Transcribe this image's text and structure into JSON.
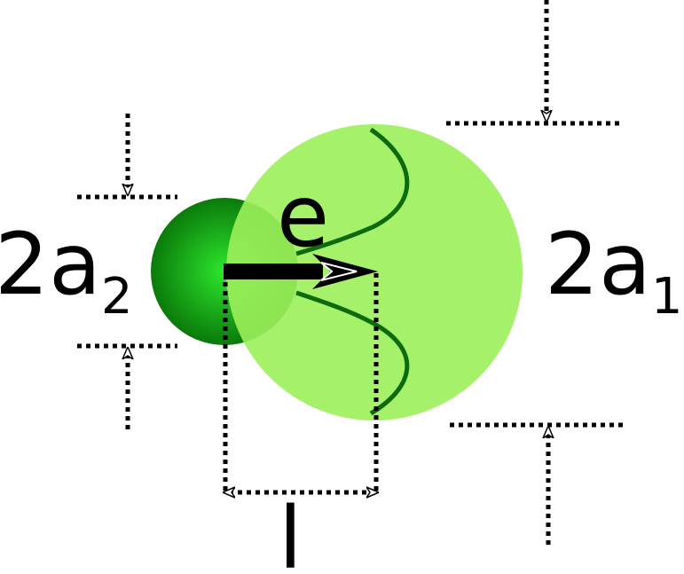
{
  "labels": {
    "left_diameter_main": "2a",
    "left_diameter_sub": "2",
    "right_diameter_main": "2a",
    "right_diameter_sub": "1",
    "director": "e",
    "length": "l"
  },
  "colors": {
    "large_sphere": "#9cf05a",
    "small_sphere_center": "#2ee62e",
    "small_sphere_edge": "#0a7a0a",
    "wave_curve": "#0d6b0d",
    "ink": "#000000"
  },
  "icons": {
    "direction_arrow": "arrow-right-icon",
    "dimension_markers": "dotted-arrow-icon"
  }
}
